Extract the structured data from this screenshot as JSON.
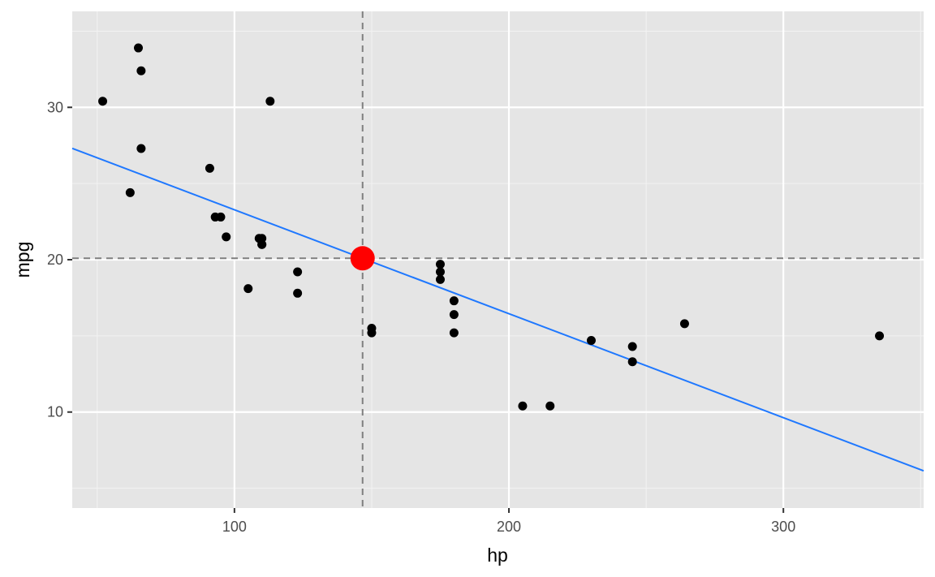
{
  "chart_data": {
    "type": "scatter",
    "xlabel": "hp",
    "ylabel": "mpg",
    "xlim": [
      40.9,
      351.1
    ],
    "ylim": [
      3.7,
      36.3
    ],
    "x_ticks": [
      100,
      200,
      300
    ],
    "y_ticks": [
      10,
      20,
      30
    ],
    "x_minor_ticks": [
      50,
      150,
      250,
      350
    ],
    "y_minor_ticks": [
      5,
      15,
      25,
      35
    ],
    "x_tick_labels": [
      "100",
      "200",
      "300"
    ],
    "y_tick_labels": [
      "10",
      "20",
      "30"
    ],
    "grid": true,
    "panel_background": "#e5e5e5",
    "point_color": "#000000",
    "points": [
      {
        "x": 110,
        "y": 21.0
      },
      {
        "x": 110,
        "y": 21.0
      },
      {
        "x": 93,
        "y": 22.8
      },
      {
        "x": 110,
        "y": 21.4
      },
      {
        "x": 175,
        "y": 18.7
      },
      {
        "x": 105,
        "y": 18.1
      },
      {
        "x": 245,
        "y": 14.3
      },
      {
        "x": 62,
        "y": 24.4
      },
      {
        "x": 95,
        "y": 22.8
      },
      {
        "x": 123,
        "y": 19.2
      },
      {
        "x": 123,
        "y": 17.8
      },
      {
        "x": 180,
        "y": 16.4
      },
      {
        "x": 180,
        "y": 17.3
      },
      {
        "x": 180,
        "y": 15.2
      },
      {
        "x": 205,
        "y": 10.4
      },
      {
        "x": 215,
        "y": 10.4
      },
      {
        "x": 230,
        "y": 14.7
      },
      {
        "x": 66,
        "y": 32.4
      },
      {
        "x": 52,
        "y": 30.4
      },
      {
        "x": 65,
        "y": 33.9
      },
      {
        "x": 97,
        "y": 21.5
      },
      {
        "x": 150,
        "y": 15.5
      },
      {
        "x": 150,
        "y": 15.2
      },
      {
        "x": 245,
        "y": 13.3
      },
      {
        "x": 175,
        "y": 19.2
      },
      {
        "x": 66,
        "y": 27.3
      },
      {
        "x": 91,
        "y": 26.0
      },
      {
        "x": 113,
        "y": 30.4
      },
      {
        "x": 264,
        "y": 15.8
      },
      {
        "x": 175,
        "y": 19.7
      },
      {
        "x": 335,
        "y": 15.0
      },
      {
        "x": 109,
        "y": 21.4
      }
    ],
    "regression_line": {
      "intercept": 30.0989,
      "slope": -0.06823,
      "color": "#1f78ff"
    },
    "highlight_point": {
      "x": 146.6875,
      "y": 20.0906,
      "color": "#ff0000"
    },
    "reference_lines": {
      "x": 146.6875,
      "y": 20.0906,
      "color": "#7f7f7f",
      "style": "dashed"
    }
  }
}
